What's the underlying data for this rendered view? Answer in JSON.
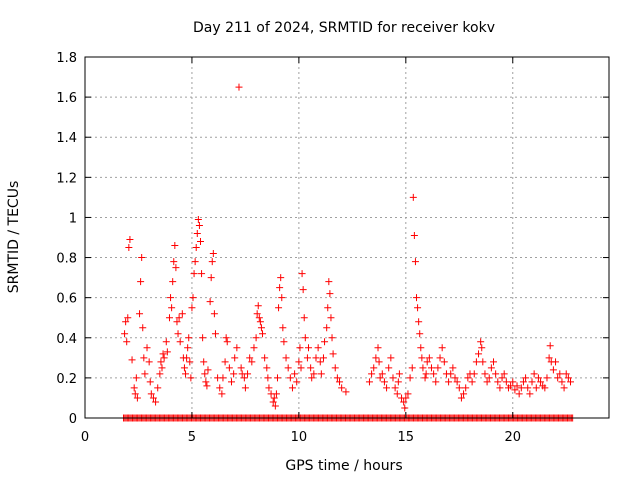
{
  "chart_data": {
    "type": "scatter",
    "title": "Day 211 of 2024, SRMTID for receiver kokv",
    "xlabel": "GPS time / hours",
    "ylabel": "SRMTID / TECUs",
    "xlim": [
      0,
      24.5
    ],
    "ylim": [
      0,
      1.8
    ],
    "xticks": [
      0,
      5,
      10,
      15,
      20
    ],
    "xtick_labels": [
      "0",
      "5",
      "10",
      "15",
      "20"
    ],
    "yticks": [
      0,
      0.2,
      0.4,
      0.6,
      0.8,
      1.0,
      1.2,
      1.4,
      1.6,
      1.8
    ],
    "ytick_labels": [
      "0",
      "0.2",
      "0.4",
      "0.6",
      "0.8",
      "1",
      "1.2",
      "1.4",
      "1.6",
      "1.8"
    ],
    "grid": true,
    "marker": "plus",
    "marker_color": "#ff0000",
    "series": [
      {
        "name": "SRMTID",
        "points": [
          [
            1.85,
            0.42
          ],
          [
            1.9,
            0.48
          ],
          [
            1.95,
            0.38
          ],
          [
            2.0,
            0.5
          ],
          [
            2.05,
            0.85
          ],
          [
            2.1,
            0.89
          ],
          [
            2.2,
            0.29
          ],
          [
            2.3,
            0.15
          ],
          [
            2.35,
            0.12
          ],
          [
            2.4,
            0.2
          ],
          [
            2.45,
            0.1
          ],
          [
            2.55,
            0.52
          ],
          [
            2.6,
            0.68
          ],
          [
            2.65,
            0.8
          ],
          [
            2.7,
            0.45
          ],
          [
            2.75,
            0.3
          ],
          [
            2.8,
            0.22
          ],
          [
            2.9,
            0.35
          ],
          [
            3.0,
            0.28
          ],
          [
            3.05,
            0.18
          ],
          [
            3.1,
            0.12
          ],
          [
            3.2,
            0.1
          ],
          [
            3.3,
            0.08
          ],
          [
            3.4,
            0.15
          ],
          [
            3.5,
            0.22
          ],
          [
            3.55,
            0.28
          ],
          [
            3.6,
            0.25
          ],
          [
            3.65,
            0.32
          ],
          [
            3.7,
            0.3
          ],
          [
            3.8,
            0.38
          ],
          [
            3.85,
            0.33
          ],
          [
            3.95,
            0.5
          ],
          [
            4.0,
            0.6
          ],
          [
            4.05,
            0.55
          ],
          [
            4.1,
            0.68
          ],
          [
            4.15,
            0.78
          ],
          [
            4.2,
            0.86
          ],
          [
            4.25,
            0.75
          ],
          [
            4.3,
            0.48
          ],
          [
            4.35,
            0.42
          ],
          [
            4.4,
            0.5
          ],
          [
            4.45,
            0.38
          ],
          [
            4.55,
            0.52
          ],
          [
            4.6,
            0.3
          ],
          [
            4.65,
            0.25
          ],
          [
            4.7,
            0.22
          ],
          [
            4.75,
            0.3
          ],
          [
            4.8,
            0.35
          ],
          [
            4.85,
            0.4
          ],
          [
            4.9,
            0.28
          ],
          [
            4.95,
            0.2
          ],
          [
            5.0,
            0.55
          ],
          [
            5.05,
            0.6
          ],
          [
            5.1,
            0.72
          ],
          [
            5.15,
            0.78
          ],
          [
            5.2,
            0.85
          ],
          [
            5.25,
            0.92
          ],
          [
            5.3,
            0.99
          ],
          [
            5.35,
            0.96
          ],
          [
            5.4,
            0.88
          ],
          [
            5.45,
            0.72
          ],
          [
            5.5,
            0.4
          ],
          [
            5.55,
            0.28
          ],
          [
            5.6,
            0.22
          ],
          [
            5.65,
            0.18
          ],
          [
            5.7,
            0.16
          ],
          [
            5.75,
            0.24
          ],
          [
            5.85,
            0.58
          ],
          [
            5.9,
            0.7
          ],
          [
            5.95,
            0.78
          ],
          [
            6.0,
            0.82
          ],
          [
            6.05,
            0.52
          ],
          [
            6.1,
            0.42
          ],
          [
            6.2,
            0.2
          ],
          [
            6.3,
            0.15
          ],
          [
            6.4,
            0.12
          ],
          [
            6.45,
            0.2
          ],
          [
            6.55,
            0.28
          ],
          [
            6.6,
            0.4
          ],
          [
            6.65,
            0.38
          ],
          [
            6.75,
            0.25
          ],
          [
            6.85,
            0.18
          ],
          [
            6.95,
            0.22
          ],
          [
            7.0,
            0.3
          ],
          [
            7.1,
            0.35
          ],
          [
            7.2,
            1.65
          ],
          [
            7.3,
            0.25
          ],
          [
            7.35,
            0.22
          ],
          [
            7.45,
            0.2
          ],
          [
            7.5,
            0.15
          ],
          [
            7.6,
            0.22
          ],
          [
            7.7,
            0.3
          ],
          [
            7.8,
            0.28
          ],
          [
            7.9,
            0.35
          ],
          [
            8.0,
            0.4
          ],
          [
            8.05,
            0.52
          ],
          [
            8.1,
            0.56
          ],
          [
            8.15,
            0.5
          ],
          [
            8.2,
            0.48
          ],
          [
            8.25,
            0.45
          ],
          [
            8.3,
            0.42
          ],
          [
            8.4,
            0.3
          ],
          [
            8.5,
            0.25
          ],
          [
            8.55,
            0.2
          ],
          [
            8.6,
            0.15
          ],
          [
            8.7,
            0.12
          ],
          [
            8.8,
            0.08
          ],
          [
            8.85,
            0.1
          ],
          [
            8.9,
            0.06
          ],
          [
            8.95,
            0.12
          ],
          [
            9.0,
            0.2
          ],
          [
            9.05,
            0.55
          ],
          [
            9.1,
            0.65
          ],
          [
            9.15,
            0.7
          ],
          [
            9.2,
            0.6
          ],
          [
            9.25,
            0.45
          ],
          [
            9.3,
            0.38
          ],
          [
            9.4,
            0.3
          ],
          [
            9.5,
            0.25
          ],
          [
            9.6,
            0.2
          ],
          [
            9.7,
            0.15
          ],
          [
            9.8,
            0.22
          ],
          [
            9.9,
            0.18
          ],
          [
            10.0,
            0.28
          ],
          [
            10.05,
            0.35
          ],
          [
            10.1,
            0.25
          ],
          [
            10.15,
            0.72
          ],
          [
            10.2,
            0.64
          ],
          [
            10.25,
            0.5
          ],
          [
            10.3,
            0.4
          ],
          [
            10.4,
            0.3
          ],
          [
            10.45,
            0.35
          ],
          [
            10.55,
            0.25
          ],
          [
            10.6,
            0.2
          ],
          [
            10.7,
            0.22
          ],
          [
            10.8,
            0.3
          ],
          [
            10.9,
            0.35
          ],
          [
            11.0,
            0.28
          ],
          [
            11.05,
            0.22
          ],
          [
            11.15,
            0.3
          ],
          [
            11.2,
            0.38
          ],
          [
            11.3,
            0.45
          ],
          [
            11.35,
            0.55
          ],
          [
            11.4,
            0.68
          ],
          [
            11.45,
            0.62
          ],
          [
            11.5,
            0.5
          ],
          [
            11.55,
            0.4
          ],
          [
            11.6,
            0.32
          ],
          [
            11.7,
            0.25
          ],
          [
            11.8,
            0.2
          ],
          [
            11.9,
            0.18
          ],
          [
            12.0,
            0.15
          ],
          [
            12.2,
            0.13
          ],
          [
            13.3,
            0.18
          ],
          [
            13.4,
            0.22
          ],
          [
            13.5,
            0.25
          ],
          [
            13.6,
            0.3
          ],
          [
            13.7,
            0.35
          ],
          [
            13.75,
            0.28
          ],
          [
            13.8,
            0.2
          ],
          [
            13.9,
            0.22
          ],
          [
            14.0,
            0.18
          ],
          [
            14.1,
            0.15
          ],
          [
            14.2,
            0.25
          ],
          [
            14.3,
            0.3
          ],
          [
            14.4,
            0.2
          ],
          [
            14.5,
            0.15
          ],
          [
            14.6,
            0.12
          ],
          [
            14.65,
            0.18
          ],
          [
            14.7,
            0.22
          ],
          [
            14.8,
            0.1
          ],
          [
            14.9,
            0.08
          ],
          [
            14.95,
            0.05
          ],
          [
            15.0,
            0.1
          ],
          [
            15.1,
            0.12
          ],
          [
            15.2,
            0.2
          ],
          [
            15.3,
            0.25
          ],
          [
            15.35,
            1.1
          ],
          [
            15.4,
            0.91
          ],
          [
            15.45,
            0.78
          ],
          [
            15.5,
            0.6
          ],
          [
            15.55,
            0.55
          ],
          [
            15.6,
            0.48
          ],
          [
            15.65,
            0.42
          ],
          [
            15.7,
            0.35
          ],
          [
            15.75,
            0.3
          ],
          [
            15.8,
            0.25
          ],
          [
            15.9,
            0.2
          ],
          [
            15.95,
            0.22
          ],
          [
            16.0,
            0.28
          ],
          [
            16.1,
            0.3
          ],
          [
            16.2,
            0.25
          ],
          [
            16.3,
            0.22
          ],
          [
            16.4,
            0.18
          ],
          [
            16.5,
            0.25
          ],
          [
            16.6,
            0.3
          ],
          [
            16.7,
            0.35
          ],
          [
            16.8,
            0.28
          ],
          [
            16.9,
            0.22
          ],
          [
            17.0,
            0.18
          ],
          [
            17.1,
            0.22
          ],
          [
            17.2,
            0.25
          ],
          [
            17.3,
            0.2
          ],
          [
            17.4,
            0.18
          ],
          [
            17.5,
            0.15
          ],
          [
            17.6,
            0.1
          ],
          [
            17.7,
            0.12
          ],
          [
            17.8,
            0.15
          ],
          [
            17.9,
            0.2
          ],
          [
            18.0,
            0.22
          ],
          [
            18.1,
            0.18
          ],
          [
            18.2,
            0.22
          ],
          [
            18.3,
            0.28
          ],
          [
            18.4,
            0.32
          ],
          [
            18.5,
            0.38
          ],
          [
            18.55,
            0.35
          ],
          [
            18.6,
            0.28
          ],
          [
            18.7,
            0.22
          ],
          [
            18.8,
            0.18
          ],
          [
            18.9,
            0.2
          ],
          [
            19.0,
            0.25
          ],
          [
            19.1,
            0.28
          ],
          [
            19.2,
            0.22
          ],
          [
            19.3,
            0.18
          ],
          [
            19.4,
            0.15
          ],
          [
            19.5,
            0.2
          ],
          [
            19.6,
            0.22
          ],
          [
            19.7,
            0.18
          ],
          [
            19.8,
            0.15
          ],
          [
            19.9,
            0.16
          ],
          [
            20.0,
            0.18
          ],
          [
            20.1,
            0.14
          ],
          [
            20.2,
            0.16
          ],
          [
            20.3,
            0.12
          ],
          [
            20.4,
            0.15
          ],
          [
            20.5,
            0.18
          ],
          [
            20.6,
            0.2
          ],
          [
            20.7,
            0.15
          ],
          [
            20.8,
            0.12
          ],
          [
            20.9,
            0.18
          ],
          [
            21.0,
            0.22
          ],
          [
            21.1,
            0.15
          ],
          [
            21.2,
            0.2
          ],
          [
            21.3,
            0.18
          ],
          [
            21.4,
            0.16
          ],
          [
            21.5,
            0.15
          ],
          [
            21.6,
            0.2
          ],
          [
            21.7,
            0.3
          ],
          [
            21.75,
            0.36
          ],
          [
            21.8,
            0.28
          ],
          [
            21.9,
            0.24
          ],
          [
            22.0,
            0.28
          ],
          [
            22.1,
            0.2
          ],
          [
            22.2,
            0.22
          ],
          [
            22.3,
            0.18
          ],
          [
            22.4,
            0.15
          ],
          [
            22.5,
            0.22
          ],
          [
            22.6,
            0.2
          ],
          [
            22.7,
            0.18
          ]
        ],
        "zero_band": [
          1.8,
          22.8,
          0.0
        ]
      }
    ]
  }
}
